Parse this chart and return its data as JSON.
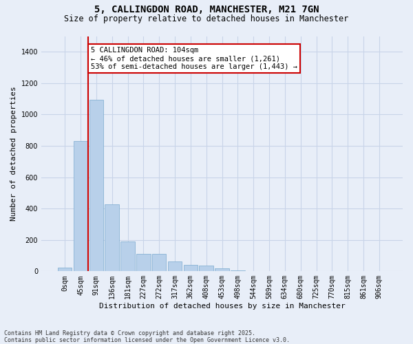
{
  "title": "5, CALLINGDON ROAD, MANCHESTER, M21 7GN",
  "subtitle": "Size of property relative to detached houses in Manchester",
  "xlabel": "Distribution of detached houses by size in Manchester",
  "ylabel": "Number of detached properties",
  "bar_color": "#b8d0ea",
  "bar_edge_color": "#7aaace",
  "categories": [
    "0sqm",
    "45sqm",
    "91sqm",
    "136sqm",
    "181sqm",
    "227sqm",
    "272sqm",
    "317sqm",
    "362sqm",
    "408sqm",
    "453sqm",
    "498sqm",
    "544sqm",
    "589sqm",
    "634sqm",
    "680sqm",
    "725sqm",
    "770sqm",
    "815sqm",
    "861sqm",
    "906sqm"
  ],
  "values": [
    25,
    830,
    1095,
    425,
    190,
    110,
    110,
    65,
    40,
    35,
    20,
    8,
    0,
    0,
    0,
    0,
    0,
    0,
    0,
    0,
    0
  ],
  "ylim": [
    0,
    1500
  ],
  "yticks": [
    0,
    200,
    400,
    600,
    800,
    1000,
    1200,
    1400
  ],
  "property_bar_index": 2,
  "red_line_x": 1.5,
  "annotation_text": "5 CALLINGDON ROAD: 104sqm\n← 46% of detached houses are smaller (1,261)\n53% of semi-detached houses are larger (1,443) →",
  "annotation_box_facecolor": "#ffffff",
  "annotation_box_edgecolor": "#cc0000",
  "red_line_color": "#cc0000",
  "grid_color": "#c8d4e8",
  "bg_color": "#e8eef8",
  "footer_text": "Contains HM Land Registry data © Crown copyright and database right 2025.\nContains public sector information licensed under the Open Government Licence v3.0.",
  "title_fontsize": 10,
  "subtitle_fontsize": 8.5,
  "ylabel_fontsize": 8,
  "xlabel_fontsize": 8,
  "tick_fontsize": 7,
  "annotation_fontsize": 7.5,
  "footer_fontsize": 6
}
